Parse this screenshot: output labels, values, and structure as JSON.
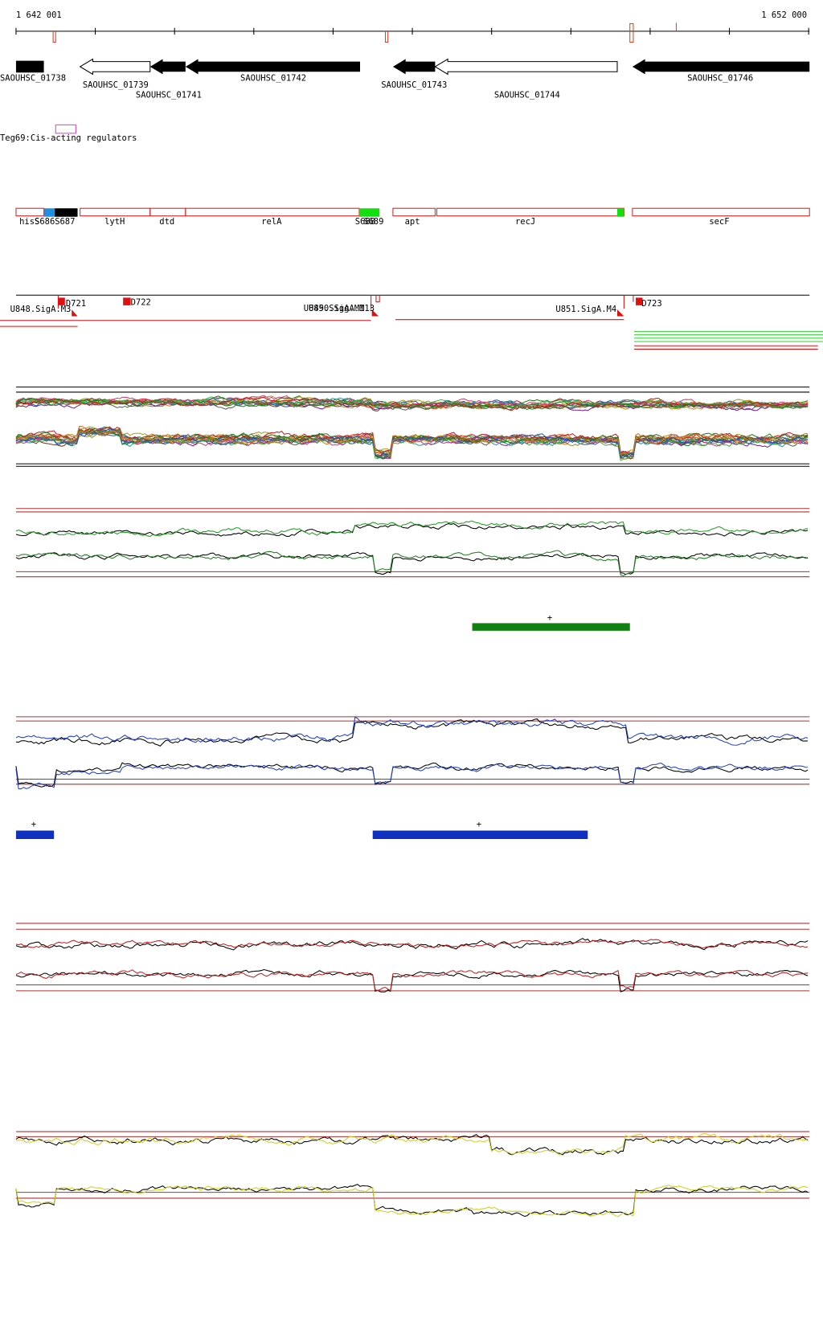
{
  "ruler": {
    "start": "1 642 001",
    "end": "1 652 000"
  },
  "genes": [
    {
      "label": "SAOUHSC_01738"
    },
    {
      "label": "SAOUHSC_01739"
    },
    {
      "label": "SAOUHSC_01741"
    },
    {
      "label": "SAOUHSC_01742"
    },
    {
      "label": "SAOUHSC_01743"
    },
    {
      "label": "SAOUHSC_01744"
    },
    {
      "label": "SAOUHSC_01746"
    }
  ],
  "regulator": {
    "label": "Teg69:Cis-acting regulators"
  },
  "features": [
    {
      "label": "hisS"
    },
    {
      "label": "S686"
    },
    {
      "label": "S687"
    },
    {
      "label": "lytH"
    },
    {
      "label": "dtd"
    },
    {
      "label": "relA"
    },
    {
      "label": "S688"
    },
    {
      "label": "S689"
    },
    {
      "label": "apt"
    },
    {
      "label": "recJ"
    },
    {
      "label": "secF"
    }
  ],
  "promoters": [
    {
      "label": "U848.SigA.M3"
    },
    {
      "label": "D721"
    },
    {
      "label": "D722"
    },
    {
      "label": "U849.SigA.M1"
    },
    {
      "label": "U850.SigA.M13"
    },
    {
      "label": "U851.SigA.M4"
    },
    {
      "label": "D723"
    }
  ],
  "segments": [
    {
      "strand": "+"
    },
    {
      "strand": "+"
    },
    {
      "strand": "+"
    }
  ]
}
